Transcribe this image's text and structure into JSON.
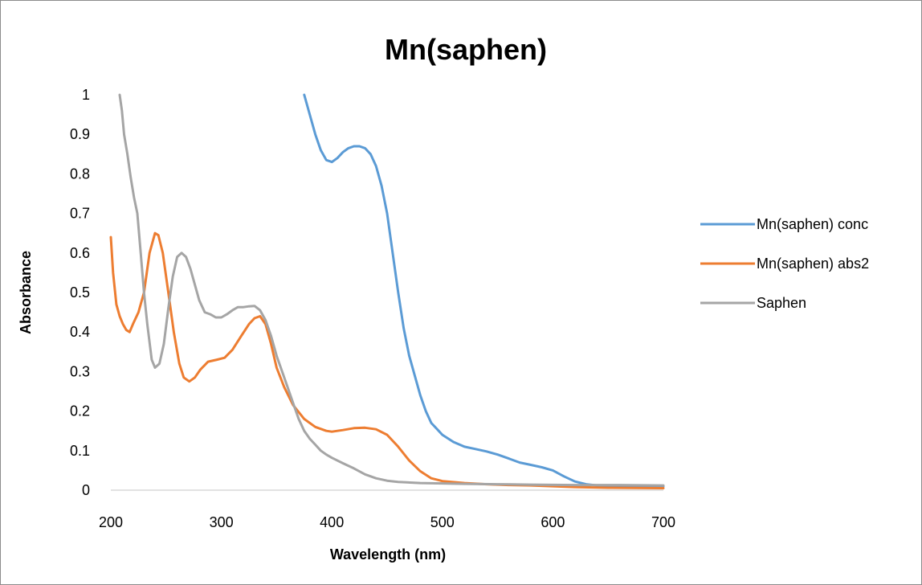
{
  "chart_data": {
    "type": "line",
    "title": "Mn(saphen)",
    "xlabel": "Wavelength (nm)",
    "ylabel": "Absorbance",
    "xlim": [
      200,
      700
    ],
    "ylim": [
      0,
      1
    ],
    "xticks": [
      "200",
      "300",
      "400",
      "500",
      "600",
      "700"
    ],
    "yticks": [
      "0",
      "0.1",
      "0.2",
      "0.3",
      "0.4",
      "0.5",
      "0.6",
      "0.7",
      "0.8",
      "0.9",
      "1"
    ],
    "grid": false,
    "legend": "right",
    "series": [
      {
        "name": "Mn(saphen) conc",
        "color": "#5b9bd5",
        "points": [
          [
            375,
            1.0
          ],
          [
            380,
            0.95
          ],
          [
            385,
            0.9
          ],
          [
            390,
            0.86
          ],
          [
            395,
            0.835
          ],
          [
            400,
            0.83
          ],
          [
            405,
            0.84
          ],
          [
            410,
            0.855
          ],
          [
            415,
            0.865
          ],
          [
            420,
            0.87
          ],
          [
            425,
            0.87
          ],
          [
            430,
            0.865
          ],
          [
            435,
            0.85
          ],
          [
            440,
            0.82
          ],
          [
            445,
            0.77
          ],
          [
            450,
            0.7
          ],
          [
            455,
            0.6
          ],
          [
            460,
            0.5
          ],
          [
            465,
            0.41
          ],
          [
            470,
            0.34
          ],
          [
            475,
            0.29
          ],
          [
            480,
            0.24
          ],
          [
            485,
            0.2
          ],
          [
            490,
            0.17
          ],
          [
            495,
            0.155
          ],
          [
            500,
            0.14
          ],
          [
            510,
            0.122
          ],
          [
            520,
            0.11
          ],
          [
            530,
            0.104
          ],
          [
            540,
            0.098
          ],
          [
            550,
            0.09
          ],
          [
            560,
            0.08
          ],
          [
            570,
            0.07
          ],
          [
            580,
            0.064
          ],
          [
            590,
            0.058
          ],
          [
            600,
            0.05
          ],
          [
            610,
            0.035
          ],
          [
            620,
            0.022
          ],
          [
            630,
            0.015
          ],
          [
            640,
            0.012
          ],
          [
            660,
            0.01
          ],
          [
            680,
            0.01
          ],
          [
            700,
            0.01
          ]
        ]
      },
      {
        "name": "Mn(saphen) abs2",
        "color": "#ed7d31",
        "points": [
          [
            200,
            0.64
          ],
          [
            202,
            0.55
          ],
          [
            205,
            0.47
          ],
          [
            208,
            0.44
          ],
          [
            211,
            0.42
          ],
          [
            214,
            0.405
          ],
          [
            217,
            0.4
          ],
          [
            220,
            0.42
          ],
          [
            225,
            0.45
          ],
          [
            230,
            0.5
          ],
          [
            235,
            0.6
          ],
          [
            240,
            0.65
          ],
          [
            243,
            0.645
          ],
          [
            247,
            0.6
          ],
          [
            252,
            0.5
          ],
          [
            257,
            0.4
          ],
          [
            262,
            0.32
          ],
          [
            266,
            0.285
          ],
          [
            271,
            0.275
          ],
          [
            276,
            0.285
          ],
          [
            281,
            0.305
          ],
          [
            288,
            0.325
          ],
          [
            296,
            0.33
          ],
          [
            303,
            0.335
          ],
          [
            310,
            0.355
          ],
          [
            318,
            0.39
          ],
          [
            325,
            0.42
          ],
          [
            330,
            0.435
          ],
          [
            335,
            0.44
          ],
          [
            340,
            0.42
          ],
          [
            345,
            0.37
          ],
          [
            350,
            0.31
          ],
          [
            357,
            0.26
          ],
          [
            365,
            0.215
          ],
          [
            375,
            0.18
          ],
          [
            385,
            0.16
          ],
          [
            395,
            0.15
          ],
          [
            400,
            0.148
          ],
          [
            410,
            0.152
          ],
          [
            420,
            0.157
          ],
          [
            430,
            0.158
          ],
          [
            440,
            0.154
          ],
          [
            450,
            0.14
          ],
          [
            460,
            0.11
          ],
          [
            470,
            0.075
          ],
          [
            480,
            0.048
          ],
          [
            490,
            0.03
          ],
          [
            500,
            0.023
          ],
          [
            520,
            0.018
          ],
          [
            540,
            0.015
          ],
          [
            560,
            0.013
          ],
          [
            580,
            0.012
          ],
          [
            600,
            0.01
          ],
          [
            620,
            0.008
          ],
          [
            650,
            0.006
          ],
          [
            700,
            0.005
          ]
        ]
      },
      {
        "name": "Saphen",
        "color": "#a5a5a5",
        "points": [
          [
            208,
            1.0
          ],
          [
            210,
            0.96
          ],
          [
            212,
            0.9
          ],
          [
            215,
            0.85
          ],
          [
            218,
            0.79
          ],
          [
            221,
            0.74
          ],
          [
            224,
            0.7
          ],
          [
            227,
            0.6
          ],
          [
            230,
            0.5
          ],
          [
            233,
            0.42
          ],
          [
            237,
            0.33
          ],
          [
            240,
            0.31
          ],
          [
            244,
            0.32
          ],
          [
            248,
            0.37
          ],
          [
            252,
            0.46
          ],
          [
            256,
            0.54
          ],
          [
            260,
            0.59
          ],
          [
            264,
            0.6
          ],
          [
            268,
            0.59
          ],
          [
            272,
            0.56
          ],
          [
            276,
            0.52
          ],
          [
            280,
            0.48
          ],
          [
            285,
            0.45
          ],
          [
            290,
            0.445
          ],
          [
            295,
            0.437
          ],
          [
            300,
            0.437
          ],
          [
            305,
            0.445
          ],
          [
            310,
            0.455
          ],
          [
            315,
            0.463
          ],
          [
            320,
            0.463
          ],
          [
            325,
            0.465
          ],
          [
            330,
            0.466
          ],
          [
            335,
            0.455
          ],
          [
            340,
            0.43
          ],
          [
            345,
            0.39
          ],
          [
            350,
            0.34
          ],
          [
            355,
            0.3
          ],
          [
            360,
            0.26
          ],
          [
            365,
            0.22
          ],
          [
            370,
            0.18
          ],
          [
            375,
            0.15
          ],
          [
            380,
            0.13
          ],
          [
            385,
            0.115
          ],
          [
            390,
            0.1
          ],
          [
            395,
            0.09
          ],
          [
            400,
            0.082
          ],
          [
            410,
            0.068
          ],
          [
            420,
            0.055
          ],
          [
            430,
            0.04
          ],
          [
            440,
            0.03
          ],
          [
            450,
            0.024
          ],
          [
            460,
            0.021
          ],
          [
            480,
            0.018
          ],
          [
            500,
            0.017
          ],
          [
            520,
            0.016
          ],
          [
            550,
            0.015
          ],
          [
            580,
            0.014
          ],
          [
            620,
            0.013
          ],
          [
            660,
            0.013
          ],
          [
            700,
            0.012
          ]
        ]
      }
    ]
  }
}
